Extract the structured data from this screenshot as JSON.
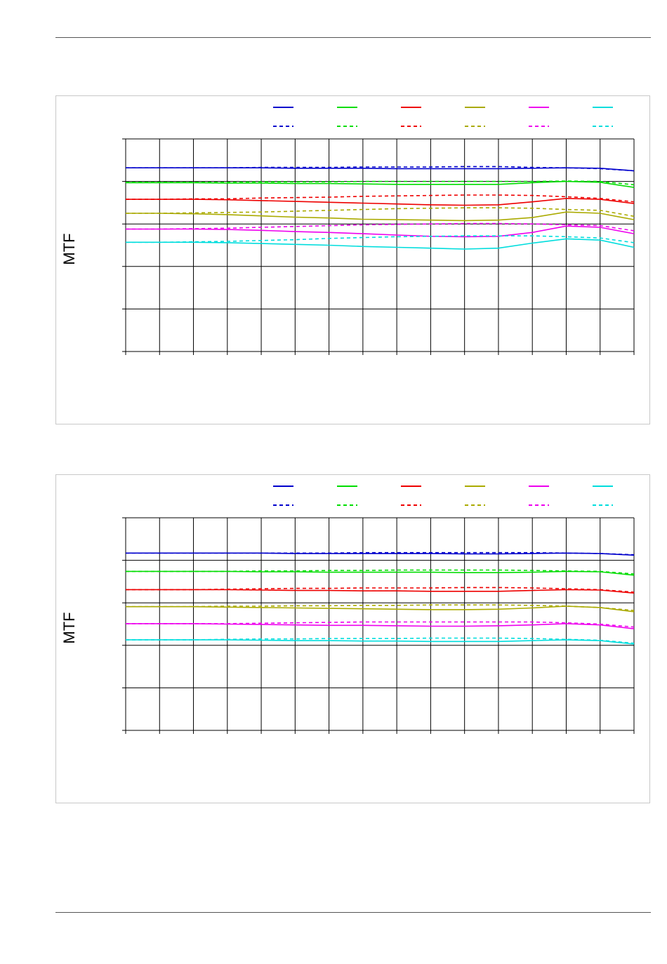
{
  "page": {},
  "chart_data": [
    {
      "type": "line",
      "ylabel": "MTF",
      "xlabel": "",
      "ylim": [
        0,
        5
      ],
      "x_gridlines": 15,
      "grid": true,
      "legend": "top-right",
      "x": [
        0,
        1,
        2,
        3,
        4,
        5,
        6,
        7,
        8,
        9,
        10,
        11,
        12,
        13,
        14,
        15
      ],
      "series": [
        {
          "color": "#0000cc",
          "style": "solid",
          "values": [
            4.32,
            4.32,
            4.32,
            4.32,
            4.32,
            4.31,
            4.31,
            4.31,
            4.3,
            4.3,
            4.3,
            4.3,
            4.31,
            4.32,
            4.31,
            4.25
          ]
        },
        {
          "color": "#0000cc",
          "style": "dashed",
          "values": [
            4.32,
            4.32,
            4.32,
            4.32,
            4.33,
            4.33,
            4.33,
            4.34,
            4.34,
            4.34,
            4.35,
            4.35,
            4.33,
            4.32,
            4.3,
            4.25
          ]
        },
        {
          "color": "#00dd00",
          "style": "solid",
          "values": [
            3.97,
            3.97,
            3.97,
            3.96,
            3.96,
            3.95,
            3.95,
            3.94,
            3.93,
            3.93,
            3.93,
            3.93,
            3.97,
            4.0,
            3.98,
            3.86
          ]
        },
        {
          "color": "#00dd00",
          "style": "dashed",
          "values": [
            3.98,
            3.98,
            3.98,
            3.98,
            3.99,
            3.99,
            3.99,
            4.0,
            4.0,
            4.0,
            4.0,
            4.0,
            4.0,
            4.01,
            4.0,
            3.92
          ]
        },
        {
          "color": "#ee0000",
          "style": "solid",
          "values": [
            3.58,
            3.58,
            3.58,
            3.57,
            3.55,
            3.53,
            3.51,
            3.49,
            3.47,
            3.45,
            3.44,
            3.45,
            3.52,
            3.6,
            3.58,
            3.48
          ]
        },
        {
          "color": "#ee0000",
          "style": "dashed",
          "values": [
            3.58,
            3.58,
            3.59,
            3.59,
            3.61,
            3.62,
            3.63,
            3.65,
            3.66,
            3.67,
            3.68,
            3.68,
            3.67,
            3.64,
            3.6,
            3.52
          ]
        },
        {
          "color": "#aaaa00",
          "style": "solid",
          "values": [
            3.25,
            3.25,
            3.24,
            3.22,
            3.19,
            3.16,
            3.14,
            3.11,
            3.1,
            3.09,
            3.08,
            3.09,
            3.15,
            3.28,
            3.25,
            3.1
          ]
        },
        {
          "color": "#aaaa00",
          "style": "dashed",
          "values": [
            3.25,
            3.25,
            3.26,
            3.27,
            3.28,
            3.3,
            3.32,
            3.34,
            3.36,
            3.37,
            3.38,
            3.38,
            3.37,
            3.34,
            3.32,
            3.18
          ]
        },
        {
          "color": "#ee00ee",
          "style": "solid",
          "values": [
            2.88,
            2.88,
            2.88,
            2.87,
            2.85,
            2.82,
            2.8,
            2.77,
            2.74,
            2.71,
            2.7,
            2.71,
            2.8,
            2.95,
            2.92,
            2.77
          ]
        },
        {
          "color": "#ee00ee",
          "style": "dashed",
          "values": [
            2.88,
            2.88,
            2.89,
            2.9,
            2.92,
            2.94,
            2.96,
            2.98,
            2.99,
            3.0,
            3.01,
            3.01,
            3.0,
            2.98,
            2.96,
            2.84
          ]
        },
        {
          "color": "#00dddd",
          "style": "solid",
          "values": [
            2.57,
            2.57,
            2.57,
            2.56,
            2.54,
            2.52,
            2.5,
            2.47,
            2.45,
            2.43,
            2.41,
            2.43,
            2.55,
            2.65,
            2.62,
            2.45
          ]
        },
        {
          "color": "#00dddd",
          "style": "dashed",
          "values": [
            2.57,
            2.57,
            2.58,
            2.59,
            2.61,
            2.63,
            2.66,
            2.68,
            2.7,
            2.71,
            2.72,
            2.72,
            2.72,
            2.7,
            2.67,
            2.56
          ]
        }
      ]
    },
    {
      "type": "line",
      "ylabel": "MTF",
      "xlabel": "",
      "ylim": [
        0,
        5
      ],
      "x_gridlines": 15,
      "grid": true,
      "legend": "top-right",
      "x": [
        0,
        1,
        2,
        3,
        4,
        5,
        6,
        7,
        8,
        9,
        10,
        11,
        12,
        13,
        14,
        15
      ],
      "series": [
        {
          "color": "#0000cc",
          "style": "solid",
          "values": [
            4.17,
            4.17,
            4.17,
            4.17,
            4.17,
            4.16,
            4.16,
            4.16,
            4.16,
            4.16,
            4.15,
            4.15,
            4.16,
            4.17,
            4.16,
            4.12
          ]
        },
        {
          "color": "#0000cc",
          "style": "dashed",
          "values": [
            4.17,
            4.17,
            4.17,
            4.17,
            4.17,
            4.17,
            4.17,
            4.18,
            4.18,
            4.18,
            4.18,
            4.18,
            4.18,
            4.17,
            4.16,
            4.13
          ]
        },
        {
          "color": "#00dd00",
          "style": "solid",
          "values": [
            3.74,
            3.74,
            3.74,
            3.74,
            3.73,
            3.73,
            3.72,
            3.72,
            3.72,
            3.72,
            3.71,
            3.71,
            3.72,
            3.74,
            3.73,
            3.65
          ]
        },
        {
          "color": "#00dd00",
          "style": "dashed",
          "values": [
            3.74,
            3.74,
            3.74,
            3.74,
            3.75,
            3.75,
            3.76,
            3.76,
            3.77,
            3.77,
            3.77,
            3.77,
            3.76,
            3.75,
            3.74,
            3.68
          ]
        },
        {
          "color": "#ee0000",
          "style": "solid",
          "values": [
            3.31,
            3.31,
            3.31,
            3.31,
            3.3,
            3.29,
            3.29,
            3.28,
            3.28,
            3.27,
            3.27,
            3.27,
            3.29,
            3.31,
            3.3,
            3.23
          ]
        },
        {
          "color": "#ee0000",
          "style": "dashed",
          "values": [
            3.31,
            3.31,
            3.31,
            3.32,
            3.33,
            3.34,
            3.34,
            3.35,
            3.35,
            3.35,
            3.36,
            3.36,
            3.35,
            3.33,
            3.31,
            3.25
          ]
        },
        {
          "color": "#aaaa00",
          "style": "solid",
          "values": [
            2.91,
            2.91,
            2.91,
            2.9,
            2.89,
            2.88,
            2.87,
            2.86,
            2.85,
            2.84,
            2.84,
            2.85,
            2.88,
            2.92,
            2.89,
            2.79
          ]
        },
        {
          "color": "#aaaa00",
          "style": "dashed",
          "values": [
            2.91,
            2.91,
            2.91,
            2.92,
            2.92,
            2.93,
            2.93,
            2.94,
            2.94,
            2.95,
            2.95,
            2.95,
            2.94,
            2.92,
            2.89,
            2.82
          ]
        },
        {
          "color": "#ee00ee",
          "style": "solid",
          "values": [
            2.51,
            2.51,
            2.51,
            2.5,
            2.49,
            2.48,
            2.47,
            2.47,
            2.46,
            2.45,
            2.45,
            2.46,
            2.48,
            2.51,
            2.48,
            2.39
          ]
        },
        {
          "color": "#ee00ee",
          "style": "dashed",
          "values": [
            2.51,
            2.51,
            2.51,
            2.51,
            2.52,
            2.53,
            2.54,
            2.55,
            2.55,
            2.55,
            2.55,
            2.55,
            2.55,
            2.53,
            2.5,
            2.43
          ]
        },
        {
          "color": "#00dddd",
          "style": "solid",
          "values": [
            2.13,
            2.13,
            2.13,
            2.13,
            2.12,
            2.11,
            2.11,
            2.1,
            2.1,
            2.09,
            2.09,
            2.09,
            2.11,
            2.13,
            2.11,
            2.03
          ]
        },
        {
          "color": "#00dddd",
          "style": "dashed",
          "values": [
            2.13,
            2.13,
            2.13,
            2.14,
            2.15,
            2.15,
            2.16,
            2.16,
            2.16,
            2.17,
            2.17,
            2.17,
            2.16,
            2.14,
            2.12,
            2.05
          ]
        }
      ]
    }
  ]
}
